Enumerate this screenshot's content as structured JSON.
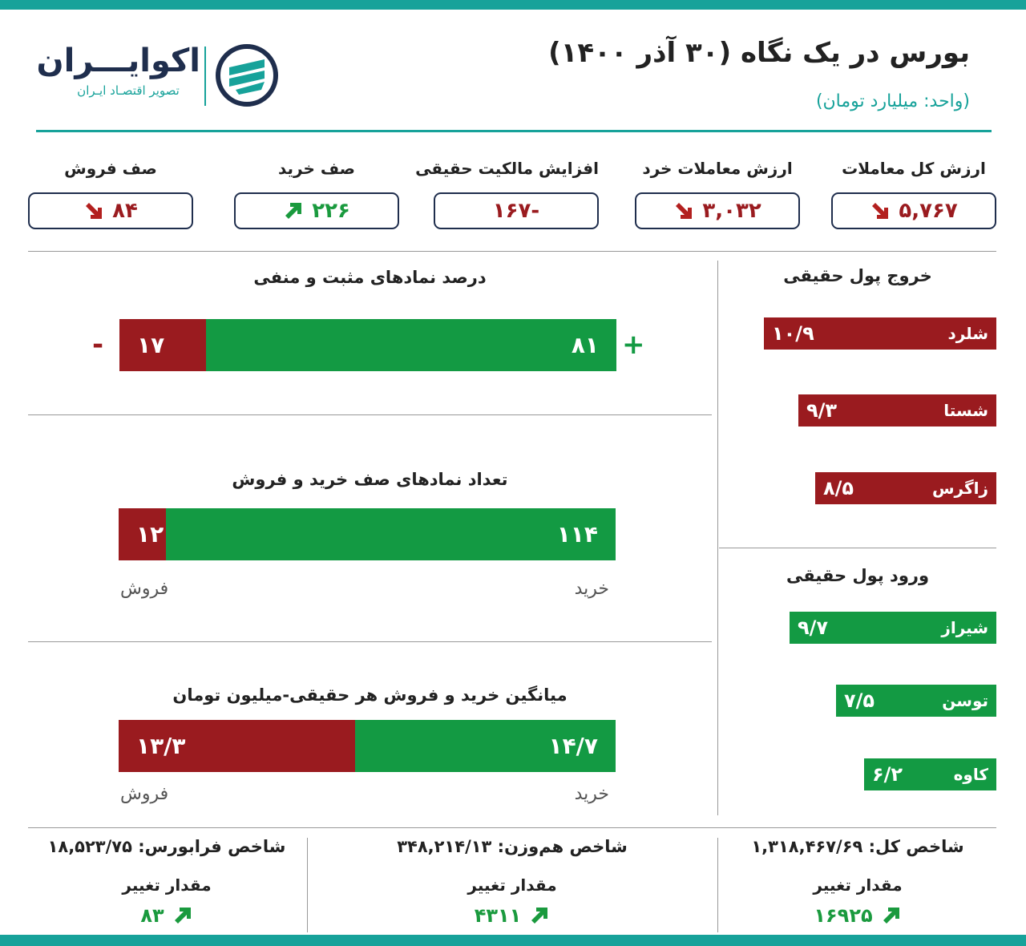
{
  "header": {
    "title": "بورس در یک نگاه (۳۰ آذر ۱۴۰۰)",
    "unit": "(واحد: میلیارد تومان)",
    "logo_name": "اکوایـــران",
    "logo_sub": "تصویر اقتصـاد ایـران"
  },
  "kpis": [
    {
      "label": "ارزش کل معاملات",
      "value": "۵,۷۶۷",
      "dir": "down"
    },
    {
      "label": "ارزش معاملات خرد",
      "value": "۳,۰۳۲",
      "dir": "down"
    },
    {
      "label": "افزایش مالکیت حقیقی",
      "value": "-۱۶۷",
      "dir": "none"
    },
    {
      "label": "صف خرید",
      "value": "۲۲۶",
      "dir": "up"
    },
    {
      "label": "صف فروش",
      "value": "۸۴",
      "dir": "down"
    }
  ],
  "chart_data": [
    {
      "type": "bar",
      "title": "درصد نمادهای مثبت و منفی",
      "series": [
        {
          "name": "+",
          "value": 81,
          "label": "۸۱",
          "color": "#139a43"
        },
        {
          "name": "-",
          "value": 17,
          "label": "۱۷",
          "color": "#9a1b1f"
        }
      ]
    },
    {
      "type": "bar",
      "title": "تعداد نمادهای صف خرید و فروش",
      "series": [
        {
          "name": "خرید",
          "value": 114,
          "label": "۱۱۴",
          "color": "#139a43"
        },
        {
          "name": "فروش",
          "value": 12,
          "label": "۱۲",
          "color": "#9a1b1f"
        }
      ]
    },
    {
      "type": "bar",
      "title": "میانگین خرید و فروش هر حقیقی-میلیون تومان",
      "series": [
        {
          "name": "خرید",
          "value": 14.7,
          "label": "۱۴/۷",
          "color": "#139a43"
        },
        {
          "name": "فروش",
          "value": 13.3,
          "label": "۱۳/۳",
          "color": "#9a1b1f"
        }
      ]
    },
    {
      "type": "bar",
      "title": "خروج پول حقیقی",
      "max_value": 10.9,
      "items": [
        {
          "name": "شلرد",
          "value": 10.9,
          "label": "۱۰/۹"
        },
        {
          "name": "شستا",
          "value": 9.3,
          "label": "۹/۳"
        },
        {
          "name": "زاگرس",
          "value": 8.5,
          "label": "۸/۵"
        }
      ]
    },
    {
      "type": "bar",
      "title": "ورود پول حقیقی",
      "max_value": 10.9,
      "items": [
        {
          "name": "شیراز",
          "value": 9.7,
          "label": "۹/۷"
        },
        {
          "name": "توسن",
          "value": 7.5,
          "label": "۷/۵"
        },
        {
          "name": "کاوه",
          "value": 6.2,
          "label": "۶/۲"
        }
      ]
    }
  ],
  "indices": [
    {
      "label": "شاخص کل: ۱,۳۱۸,۴۶۷/۶۹",
      "change_label": "مقدار تغییر",
      "change": "۱۶۹۲۵"
    },
    {
      "label": "شاخص هم‌وزن: ۳۴۸,۲۱۴/۱۳",
      "change_label": "مقدار تغییر",
      "change": "۴۳۱۱"
    },
    {
      "label": "شاخص فرابورس: ۱۸,۵۲۳/۷۵",
      "change_label": "مقدار تغییر",
      "change": "۸۳"
    }
  ]
}
